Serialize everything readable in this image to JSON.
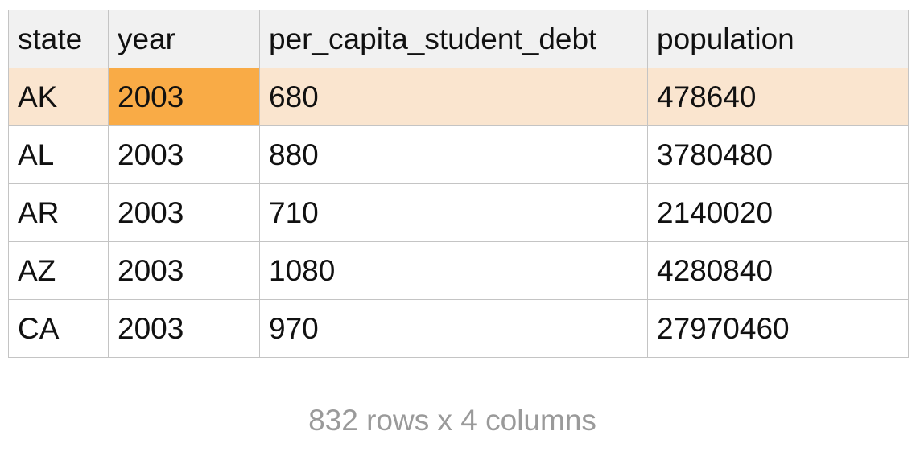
{
  "table": {
    "columns": [
      "state",
      "year",
      "per_capita_student_debt",
      "population"
    ],
    "rows": [
      [
        "AK",
        "2003",
        "680",
        "478640"
      ],
      [
        "AL",
        "2003",
        "880",
        "3780480"
      ],
      [
        "AR",
        "2003",
        "710",
        "2140020"
      ],
      [
        "AZ",
        "2003",
        "1080",
        "4280840"
      ],
      [
        "CA",
        "2003",
        "970",
        "27970460"
      ]
    ],
    "selected_row": 0,
    "selected_column": 1
  },
  "colors": {
    "header_bg": "#f1f1f1",
    "selected_row_bg": "#fae5cf",
    "selected_cell_bg": "#f9ab46",
    "grid_line": "#c4c4c4",
    "footer_text": "#9a9a9a"
  },
  "footer": {
    "summary": "832 rows x 4 columns"
  }
}
